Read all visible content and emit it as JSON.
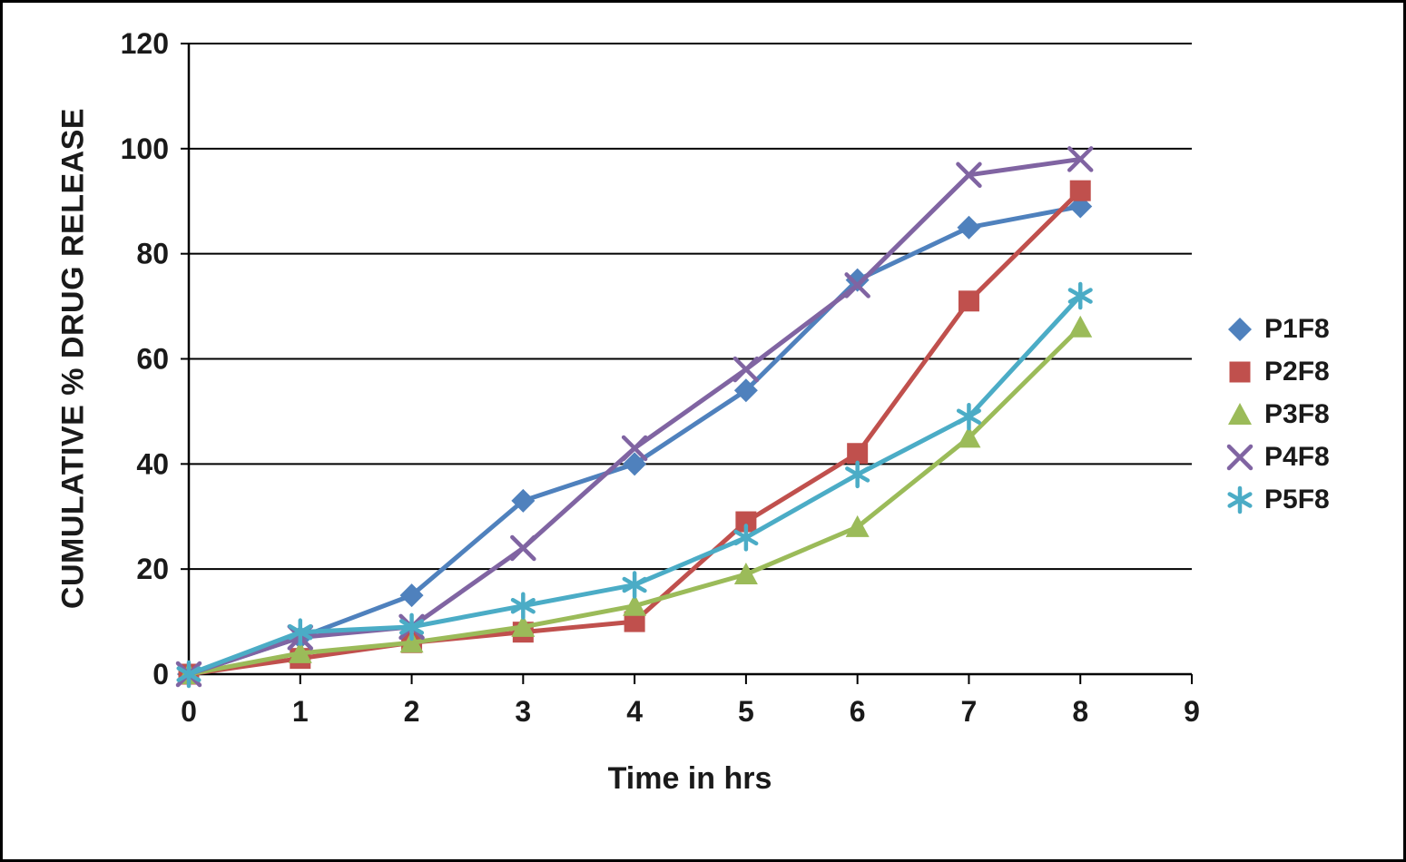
{
  "chart_data": {
    "type": "line",
    "title": "",
    "xlabel": "Time in hrs",
    "ylabel": "CUMULATIVE % DRUG RELEASE",
    "x": [
      0,
      1,
      2,
      3,
      4,
      5,
      6,
      7,
      8
    ],
    "xlim": [
      0,
      9
    ],
    "ylim": [
      0,
      120
    ],
    "xticks": [
      0,
      1,
      2,
      3,
      4,
      5,
      6,
      7,
      8,
      9
    ],
    "yticks": [
      0,
      20,
      40,
      60,
      80,
      100,
      120
    ],
    "grid": "horizontal",
    "legend_position": "right",
    "series": [
      {
        "name": "P1F8",
        "marker": "diamond",
        "color": "#4F81BD",
        "values": [
          0,
          7,
          15,
          33,
          40,
          54,
          75,
          85,
          89
        ]
      },
      {
        "name": "P2F8",
        "marker": "square",
        "color": "#C0504D",
        "values": [
          0,
          3,
          6,
          8,
          10,
          29,
          42,
          71,
          92
        ]
      },
      {
        "name": "P3F8",
        "marker": "triangle",
        "color": "#9BBB59",
        "values": [
          0,
          4,
          6,
          9,
          13,
          19,
          28,
          45,
          66
        ]
      },
      {
        "name": "P4F8",
        "marker": "x",
        "color": "#8064A2",
        "values": [
          0,
          7,
          9,
          24,
          43,
          58,
          74,
          95,
          98
        ]
      },
      {
        "name": "P5F8",
        "marker": "asterisk",
        "color": "#4BACC6",
        "values": [
          0,
          8,
          9,
          13,
          17,
          26,
          38,
          49,
          72
        ]
      }
    ]
  }
}
